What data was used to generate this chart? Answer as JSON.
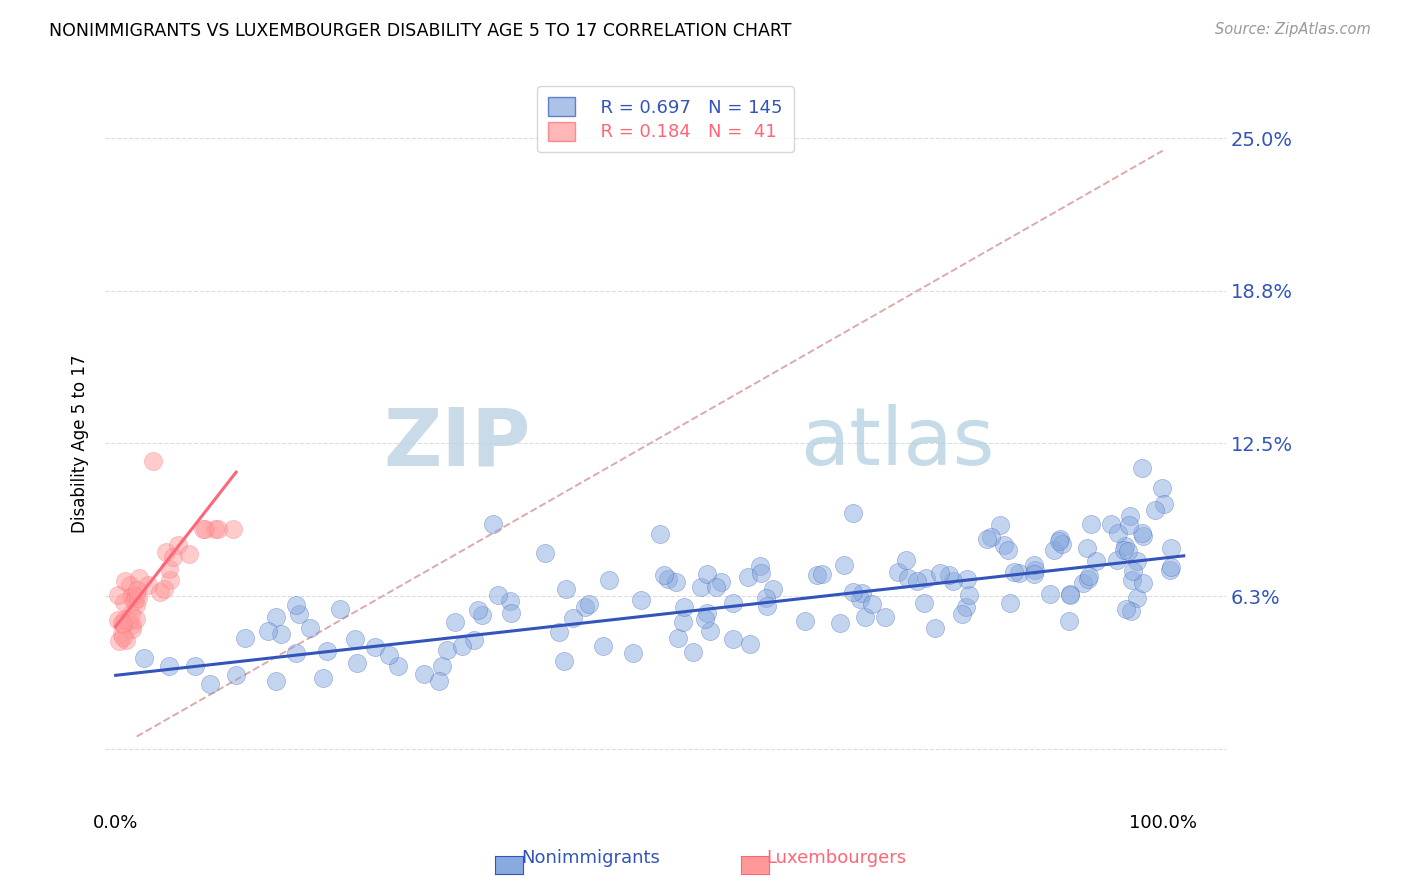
{
  "title": "NONIMMIGRANTS VS LUXEMBOURGER DISABILITY AGE 5 TO 17 CORRELATION CHART",
  "source": "Source: ZipAtlas.com",
  "ylabel": "Disability Age 5 to 17",
  "ytick_vals": [
    0.0,
    0.0625,
    0.125,
    0.1875,
    0.25
  ],
  "ytick_labels": [
    "",
    "6.3%",
    "12.5%",
    "18.8%",
    "25.0%"
  ],
  "legend_blue_R": "0.697",
  "legend_blue_N": "145",
  "legend_pink_R": "0.184",
  "legend_pink_N": " 41",
  "blue_scatter_color": "#88AADE",
  "pink_scatter_color": "#FF9999",
  "blue_line_color": "#3355BB",
  "pink_line_color": "#FF6677",
  "dashed_line_color": "#DDAAAA",
  "background_color": "#FFFFFF",
  "watermark_zip_color": "#C8D8E8",
  "watermark_atlas_color": "#A8C4D8",
  "grid_color": "#DDDDDD",
  "blue_regression_slope": 0.048,
  "blue_regression_intercept": 0.03,
  "pink_regression_slope": 0.55,
  "pink_regression_intercept": 0.05,
  "pink_regression_xmax": 0.115,
  "dashed_slope": 0.245,
  "dashed_intercept": 0.0,
  "dashed_xstart": 0.02,
  "dashed_xend": 1.0,
  "xlim": [
    -0.01,
    1.06
  ],
  "ylim": [
    -0.025,
    0.275
  ],
  "figsize": [
    14.06,
    8.92
  ],
  "dpi": 100
}
